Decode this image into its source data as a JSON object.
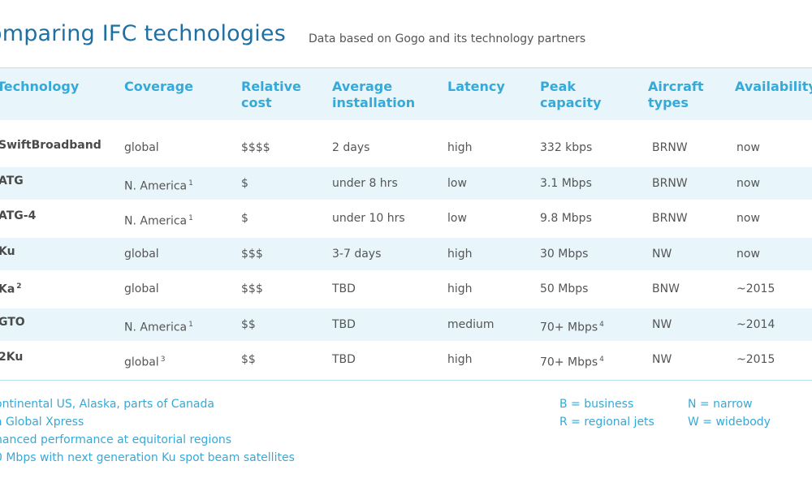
{
  "title": "omparing IFC technologies",
  "subtitle": "Data based on Gogo and its technology partners",
  "headers": {
    "technology": "Technology",
    "coverage": "Coverage",
    "cost_1": "Relative",
    "cost_2": "cost",
    "install_1": "Average",
    "install_2": "installation",
    "latency": "Latency",
    "peak_1": "Peak",
    "peak_2": "capacity",
    "aircraft_1": "Aircraft",
    "aircraft_2": "types",
    "availability": "Availability"
  },
  "rows": [
    {
      "tech": "SwiftBroadband",
      "tech_note": "",
      "coverage": "global",
      "coverage_note": "",
      "cost": "$$$$",
      "install": "2 days",
      "latency": "high",
      "peak": "332 kbps",
      "peak_note": "",
      "aircraft": "BRNW",
      "availability": "now"
    },
    {
      "tech": "ATG",
      "tech_note": "",
      "coverage": "N. America",
      "coverage_note": "1",
      "cost": "$",
      "install": "under 8 hrs",
      "latency": "low",
      "peak": "3.1 Mbps",
      "peak_note": "",
      "aircraft": "BRNW",
      "availability": "now"
    },
    {
      "tech": "ATG-4",
      "tech_note": "",
      "coverage": "N. America",
      "coverage_note": "1",
      "cost": "$",
      "install": "under 10 hrs",
      "latency": "low",
      "peak": "9.8 Mbps",
      "peak_note": "",
      "aircraft": "BRNW",
      "availability": "now"
    },
    {
      "tech": "Ku",
      "tech_note": "",
      "coverage": "global",
      "coverage_note": "",
      "cost": "$$$",
      "install": "3-7 days",
      "latency": "high",
      "peak": "30 Mbps",
      "peak_note": "",
      "aircraft": "NW",
      "availability": "now"
    },
    {
      "tech": "Ka",
      "tech_note": "2",
      "coverage": "global",
      "coverage_note": "",
      "cost": "$$$",
      "install": "TBD",
      "latency": "high",
      "peak": "50 Mbps",
      "peak_note": "",
      "aircraft": "BNW",
      "availability": "~2015"
    },
    {
      "tech": "GTO",
      "tech_note": "",
      "coverage": "N. America",
      "coverage_note": "1",
      "cost": "$$",
      "install": "TBD",
      "latency": "medium",
      "peak": "70+ Mbps",
      "peak_note": "4",
      "aircraft": "NW",
      "availability": "~2014"
    },
    {
      "tech": "2Ku",
      "tech_note": "",
      "coverage": "global",
      "coverage_note": "3",
      "cost": "$$",
      "install": "TBD",
      "latency": "high",
      "peak": "70+ Mbps",
      "peak_note": "4",
      "aircraft": "NW",
      "availability": "~2015"
    }
  ],
  "footnotes": [
    "ontinental US, Alaska, parts of Canada",
    "a Global Xpress",
    "hanced performance at equitorial regions",
    "0 Mbps with next generation Ku spot beam satellites"
  ],
  "legend": {
    "b": "B = business",
    "r": "R = regional jets",
    "n": "N = narrow",
    "w": "W = widebody"
  },
  "colors": {
    "accent": "#35a9d8",
    "title": "#1f6fa3",
    "band": "#e8f6fc",
    "text": "#555555"
  }
}
